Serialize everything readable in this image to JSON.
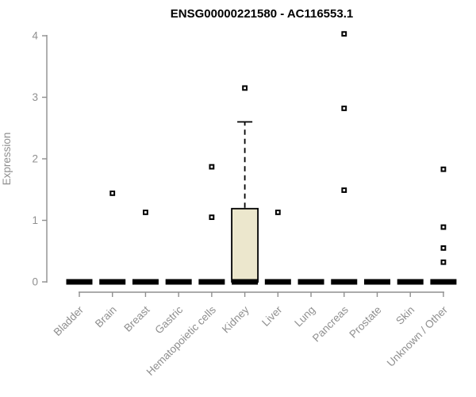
{
  "chart_data": {
    "type": "boxplot",
    "title": "ENSG00000221580 - AC116553.1",
    "ylabel": "Expression",
    "xlabel": "",
    "ylim": [
      0,
      4
    ],
    "yticks": [
      0,
      1,
      2,
      3,
      4
    ],
    "grid": false,
    "legend": null,
    "categories": [
      "Bladder",
      "Brain",
      "Breast",
      "Gastric",
      "Hematopoietic cells",
      "Kidney",
      "Liver",
      "Lung",
      "Pancreas",
      "Prostate",
      "Skin",
      "Unknown / Other"
    ],
    "boxes": [
      {
        "category": "Bladder",
        "q1": 0,
        "median": 0,
        "q3": 0,
        "whisker_low": 0,
        "whisker_high": 0,
        "outliers": []
      },
      {
        "category": "Brain",
        "q1": 0,
        "median": 0,
        "q3": 0,
        "whisker_low": 0,
        "whisker_high": 0,
        "outliers": [
          1.44
        ]
      },
      {
        "category": "Breast",
        "q1": 0,
        "median": 0,
        "q3": 0,
        "whisker_low": 0,
        "whisker_high": 0,
        "outliers": [
          1.13
        ]
      },
      {
        "category": "Gastric",
        "q1": 0,
        "median": 0,
        "q3": 0,
        "whisker_low": 0,
        "whisker_high": 0,
        "outliers": []
      },
      {
        "category": "Hematopoietic cells",
        "q1": 0,
        "median": 0,
        "q3": 0,
        "whisker_low": 0,
        "whisker_high": 0,
        "outliers": [
          1.05,
          1.87
        ]
      },
      {
        "category": "Kidney",
        "q1": 0,
        "median": 0,
        "q3": 1.19,
        "whisker_low": 0,
        "whisker_high": 2.6,
        "outliers": [
          3.15
        ]
      },
      {
        "category": "Liver",
        "q1": 0,
        "median": 0,
        "q3": 0,
        "whisker_low": 0,
        "whisker_high": 0,
        "outliers": [
          1.13
        ]
      },
      {
        "category": "Lung",
        "q1": 0,
        "median": 0,
        "q3": 0,
        "whisker_low": 0,
        "whisker_high": 0,
        "outliers": []
      },
      {
        "category": "Pancreas",
        "q1": 0,
        "median": 0,
        "q3": 0,
        "whisker_low": 0,
        "whisker_high": 0,
        "outliers": [
          1.49,
          2.82,
          4.03
        ]
      },
      {
        "category": "Prostate",
        "q1": 0,
        "median": 0,
        "q3": 0,
        "whisker_low": 0,
        "whisker_high": 0,
        "outliers": []
      },
      {
        "category": "Skin",
        "q1": 0,
        "median": 0,
        "q3": 0,
        "whisker_low": 0,
        "whisker_high": 0,
        "outliers": []
      },
      {
        "category": "Unknown / Other",
        "q1": 0,
        "median": 0,
        "q3": 0,
        "whisker_low": 0,
        "whisker_high": 0,
        "outliers": [
          0.32,
          0.55,
          0.89,
          1.83
        ]
      }
    ],
    "colors": {
      "box_fill": "#ece7cd",
      "box_stroke": "#000000",
      "median": "#000000",
      "outlier_stroke": "#000000",
      "outlier_fill": "#ffffff",
      "axis": "#8f8f8f",
      "title": "#000000"
    }
  }
}
